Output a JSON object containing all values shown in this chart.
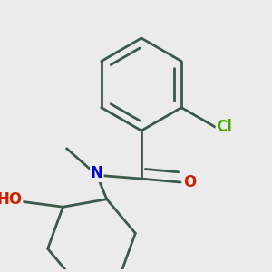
{
  "background_color": "#ebebeb",
  "bond_color": "#3a5a4a",
  "bond_width": 2.0,
  "atom_labels": {
    "N": {
      "color": "#0000cc",
      "fontsize": 12,
      "fontweight": "bold"
    },
    "O_carbonyl": {
      "color": "#cc2200",
      "fontsize": 12,
      "fontweight": "bold"
    },
    "O_hydroxyl": {
      "color": "#cc2200",
      "fontsize": 12,
      "fontweight": "bold"
    },
    "Cl": {
      "color": "#44aa00",
      "fontsize": 12,
      "fontweight": "bold"
    },
    "H": {
      "color": "#777777",
      "fontsize": 10,
      "fontweight": "normal"
    }
  },
  "figsize": [
    3.0,
    3.0
  ],
  "dpi": 100
}
